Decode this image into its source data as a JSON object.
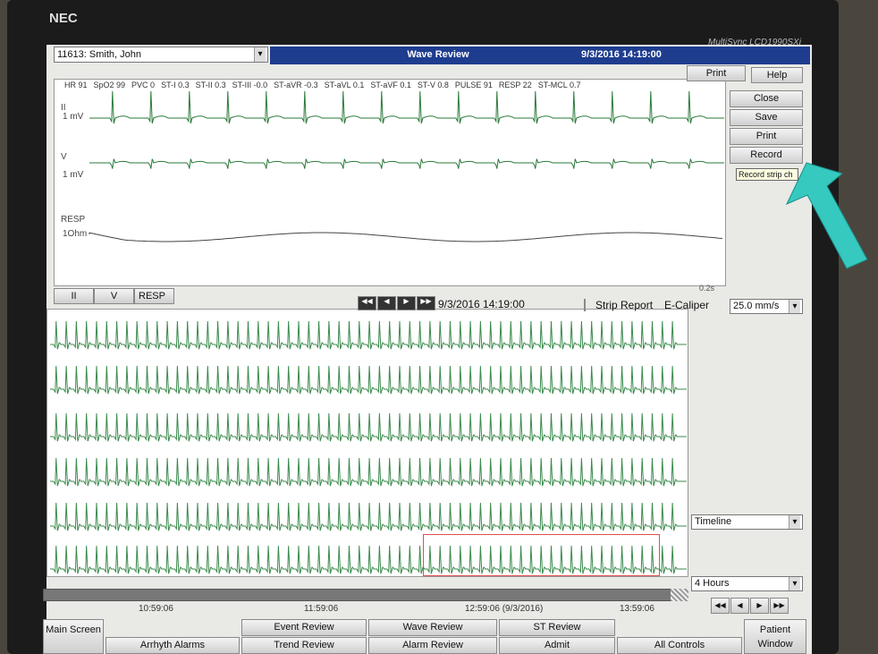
{
  "monitor": {
    "brand": "NEC",
    "model": "MultiSync LCD1990SXi"
  },
  "header": {
    "patient": "11613: Smith, John",
    "title": "Wave Review",
    "datetime": "9/3/2016 14:19:00",
    "print": "Print",
    "help": "Help"
  },
  "parameters": [
    "HR 91",
    "SpO2 99",
    "PVC 0",
    "ST-I 0.3",
    "ST-II 0.3",
    "ST-III -0.0",
    "ST-aVR -0.3",
    "ST-aVL 0.1",
    "ST-aVF 0.1",
    "ST-V 0.8",
    "PULSE 91",
    "RESP 22",
    "ST-MCL 0.7"
  ],
  "waves": [
    {
      "lead": "II",
      "scale": "1 mV"
    },
    {
      "lead": "V",
      "scale": "1 mV"
    },
    {
      "lead": "RESP",
      "scale": "1Ohm"
    }
  ],
  "side_buttons": [
    "Close",
    "Save",
    "Print",
    "Record"
  ],
  "tooltip": "Record strip ch",
  "time_scale": "0.2s",
  "tabs": [
    "II",
    "V",
    "RESP"
  ],
  "navigator": {
    "datetime": "9/3/2016 14:19:00",
    "strip_report": "Strip Report",
    "e_caliper": "E-Caliper",
    "speed": "25.0 mm/s"
  },
  "full_disclosure": {
    "view": "Timeline",
    "range": "4 Hours",
    "timeline": [
      "10:59:06",
      "11:59:06",
      "12:59:06 (9/3/2016)",
      "13:59:06"
    ]
  },
  "bottom_nav": [
    "Main Screen",
    "Arrhyth Alarms",
    "Event Review",
    "Trend Review",
    "Wave Review",
    "Alarm Review",
    "ST Review",
    "Admit",
    "All Controls",
    "Patient Window"
  ]
}
